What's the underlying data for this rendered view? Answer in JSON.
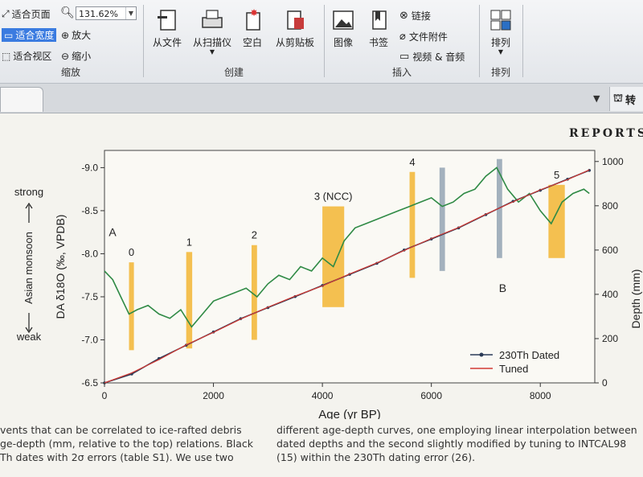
{
  "ribbon": {
    "zoom_group": {
      "fit_page": "适合页面",
      "fit_width": "适合宽度",
      "fit_region": "适合视区",
      "zoom_value": "131.62%",
      "zoom_in": "放大",
      "zoom_out": "缩小",
      "label": "缩放"
    },
    "create_group": {
      "from_file": "从文件",
      "from_scanner": "从扫描仪",
      "blank": "空白",
      "from_clipboard": "从剪贴板",
      "label": "创建"
    },
    "insert_group": {
      "image": "图像",
      "bookmark": "书签",
      "link": "链接",
      "file_attachment": "文件附件",
      "video_audio": "视频 & 音频",
      "label": "插入"
    },
    "arrange_group": {
      "arrange": "排列",
      "label": "排列"
    }
  },
  "right_panel": {
    "label": "转"
  },
  "page": {
    "header": "Reports",
    "caption_left": [
      "vents that can be correlated to ice-rafted debris",
      "ge-depth (mm, relative to the top) relations. Black",
      "Th dates with 2σ errors (table S1). We use two"
    ],
    "caption_right": [
      "different age-depth curves, one employing linear interpolation between",
      "dated depths and the second slightly modified by tuning to INTCAL98",
      "(15) within the 230Th dating error (26)."
    ]
  },
  "chart_data": {
    "type": "line",
    "xlabel": "Age (yr BP)",
    "ylabel_left": "DA δ18O (‰, VPDB)",
    "ylabel_right": "Depth (mm)",
    "monsoon_axis": {
      "top": "strong",
      "middle": "Asian monsoon",
      "bottom": "weak"
    },
    "xlim": [
      0,
      9000
    ],
    "ylim_left": [
      -6.5,
      -9.2
    ],
    "ylim_right": [
      0,
      1050
    ],
    "x_ticks": [
      0,
      2000,
      4000,
      6000,
      8000
    ],
    "y_ticks_left": [
      -6.5,
      -7.0,
      -7.5,
      -8.0,
      -8.5,
      -9.0
    ],
    "y_ticks_right": [
      0,
      200,
      400,
      600,
      800,
      1000
    ],
    "labels": [
      {
        "text": "A",
        "x": 80,
        "y": -8.15
      },
      {
        "text": "B",
        "x": 7240,
        "y": -7.5
      }
    ],
    "events": [
      {
        "label": "0",
        "x_start": 450,
        "x_end": 540,
        "y_bottom": -6.88,
        "y_top": -7.9,
        "color": "#f2b632"
      },
      {
        "label": "1",
        "x_start": 1500,
        "x_end": 1610,
        "y_bottom": -6.9,
        "y_top": -8.02,
        "color": "#f2b632"
      },
      {
        "label": "2",
        "x_start": 2700,
        "x_end": 2800,
        "y_bottom": -7.0,
        "y_top": -8.1,
        "color": "#f2b632"
      },
      {
        "label": "3 (NCC)",
        "x_start": 4000,
        "x_end": 4400,
        "y_bottom": -7.38,
        "y_top": -8.55,
        "color": "#f2b632"
      },
      {
        "label": "4",
        "x_start": 5600,
        "x_end": 5700,
        "y_bottom": -7.72,
        "y_top": -8.95,
        "color": "#f2b632"
      },
      {
        "label": "",
        "x_start": 6150,
        "x_end": 6250,
        "y_bottom": -7.8,
        "y_top": -9.0,
        "color": "#93a4b3"
      },
      {
        "label": "",
        "x_start": 7200,
        "x_end": 7300,
        "y_bottom": -7.95,
        "y_top": -9.1,
        "color": "#93a4b3"
      },
      {
        "label": "5",
        "x_start": 8150,
        "x_end": 8450,
        "y_bottom": -7.95,
        "y_top": -8.8,
        "color": "#f2b632"
      }
    ],
    "series": [
      {
        "name": "δ18O",
        "axis": "left",
        "color": "#2f8a45",
        "x": [
          0,
          150,
          300,
          450,
          600,
          800,
          1000,
          1200,
          1400,
          1600,
          1800,
          2000,
          2200,
          2400,
          2600,
          2800,
          3000,
          3200,
          3400,
          3600,
          3800,
          4000,
          4200,
          4400,
          4600,
          4800,
          5000,
          5200,
          5400,
          5600,
          5800,
          6000,
          6200,
          6400,
          6600,
          6800,
          7000,
          7200,
          7400,
          7600,
          7800,
          8000,
          8200,
          8400,
          8600,
          8800,
          8900
        ],
        "y": [
          -7.8,
          -7.7,
          -7.5,
          -7.3,
          -7.35,
          -7.4,
          -7.3,
          -7.25,
          -7.35,
          -7.15,
          -7.3,
          -7.45,
          -7.5,
          -7.55,
          -7.6,
          -7.5,
          -7.65,
          -7.75,
          -7.7,
          -7.85,
          -7.8,
          -7.95,
          -7.85,
          -8.15,
          -8.3,
          -8.35,
          -8.4,
          -8.45,
          -8.5,
          -8.55,
          -8.6,
          -8.65,
          -8.55,
          -8.6,
          -8.7,
          -8.75,
          -8.9,
          -9.0,
          -8.75,
          -8.6,
          -8.7,
          -8.5,
          -8.35,
          -8.6,
          -8.7,
          -8.75,
          -8.7
        ]
      },
      {
        "name": "230Th Dated",
        "axis": "right",
        "color": "#2a3a56",
        "x": [
          0,
          500,
          1000,
          1500,
          2000,
          2500,
          3000,
          3500,
          4000,
          4500,
          5000,
          5500,
          6000,
          6500,
          7000,
          7500,
          8000,
          8500,
          8900
        ],
        "y": [
          0,
          40,
          110,
          170,
          230,
          290,
          340,
          390,
          440,
          490,
          540,
          600,
          650,
          700,
          760,
          820,
          870,
          920,
          960
        ]
      },
      {
        "name": "Tuned",
        "axis": "right",
        "color": "#d23a34",
        "x": [
          0,
          500,
          1000,
          1500,
          2000,
          2500,
          3000,
          3500,
          4000,
          4500,
          5000,
          5500,
          6000,
          6500,
          7000,
          7500,
          8000,
          8500,
          8900
        ],
        "y": [
          0,
          45,
          105,
          172,
          228,
          288,
          342,
          392,
          438,
          492,
          542,
          598,
          652,
          702,
          762,
          818,
          872,
          918,
          962
        ]
      }
    ]
  },
  "icons": {
    "fit_page": "fit-page-icon",
    "fit_width": "fit-width-icon",
    "fit_region": "fit-region-icon",
    "zoom_in": "zoom-in-icon",
    "zoom_out": "zoom-out-icon",
    "from_file": "file-icon",
    "from_scanner": "scanner-icon",
    "blank": "blank-page-icon",
    "from_clipboard": "clipboard-icon",
    "image": "image-icon",
    "bookmark": "bookmark-icon",
    "link": "link-icon",
    "attachment": "attachment-icon",
    "video": "video-icon",
    "arrange": "arrange-icon"
  }
}
